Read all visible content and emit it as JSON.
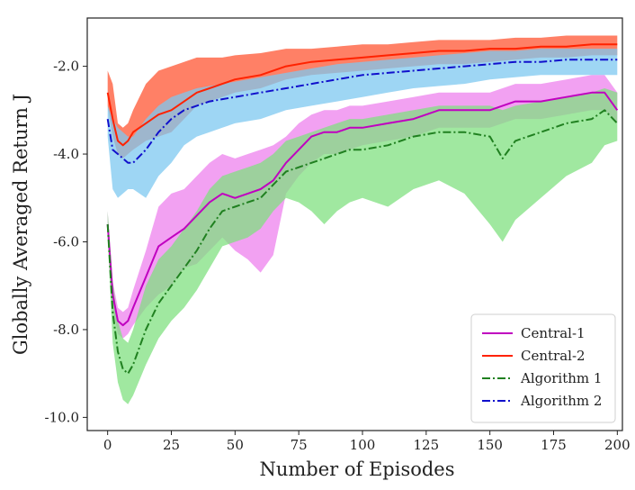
{
  "chart_data": {
    "type": "line",
    "title": "",
    "xlabel": "Number of Episodes",
    "ylabel": "Globally Averaged Return J",
    "xlim": [
      -8,
      202
    ],
    "ylim": [
      -10.3,
      -0.9
    ],
    "xticks": [
      0,
      25,
      50,
      75,
      100,
      125,
      150,
      175,
      200
    ],
    "xtick_labels": [
      "0",
      "25",
      "50",
      "75",
      "100",
      "125",
      "150",
      "175",
      "200"
    ],
    "yticks": [
      -2.0,
      -4.0,
      -6.0,
      -8.0,
      -10.0
    ],
    "ytick_labels": [
      "-2.0",
      "-4.0",
      "-6.0",
      "-8.0",
      "-10.0"
    ],
    "grid": false,
    "legend_position": "bottom-right",
    "series": [
      {
        "name": "Central-1",
        "color": "#c000c0",
        "band_color": "#ee82ee",
        "dash": "solid",
        "x": [
          0,
          2,
          4,
          6,
          8,
          10,
          15,
          20,
          25,
          30,
          35,
          40,
          45,
          50,
          55,
          60,
          65,
          70,
          75,
          80,
          85,
          90,
          95,
          100,
          110,
          120,
          130,
          140,
          150,
          160,
          170,
          180,
          190,
          195,
          200
        ],
        "y": [
          -5.6,
          -7.2,
          -7.8,
          -7.9,
          -7.8,
          -7.5,
          -6.8,
          -6.1,
          -5.9,
          -5.7,
          -5.4,
          -5.1,
          -4.9,
          -5.0,
          -4.9,
          -4.8,
          -4.6,
          -4.2,
          -3.9,
          -3.6,
          -3.5,
          -3.5,
          -3.4,
          -3.4,
          -3.3,
          -3.2,
          -3.0,
          -3.0,
          -3.0,
          -2.8,
          -2.8,
          -2.7,
          -2.6,
          -2.6,
          -3.0
        ],
        "lower": [
          -5.8,
          -7.5,
          -8.1,
          -8.2,
          -8.1,
          -7.9,
          -7.5,
          -7.2,
          -7.0,
          -6.6,
          -6.5,
          -6.2,
          -5.9,
          -6.2,
          -6.4,
          -6.7,
          -6.3,
          -4.9,
          -4.5,
          -4.2,
          -4.0,
          -4.0,
          -3.9,
          -3.8,
          -3.7,
          -3.6,
          -3.4,
          -3.4,
          -3.4,
          -3.2,
          -3.2,
          -3.1,
          -3.0,
          -3.0,
          -3.3
        ],
        "upper": [
          -5.3,
          -6.9,
          -7.5,
          -7.6,
          -7.5,
          -7.1,
          -6.2,
          -5.2,
          -4.9,
          -4.8,
          -4.5,
          -4.2,
          -4.0,
          -4.1,
          -4.0,
          -3.9,
          -3.8,
          -3.6,
          -3.3,
          -3.1,
          -3.0,
          -3.0,
          -2.9,
          -2.9,
          -2.8,
          -2.7,
          -2.6,
          -2.6,
          -2.6,
          -2.4,
          -2.4,
          -2.3,
          -2.2,
          -2.2,
          -2.6
        ]
      },
      {
        "name": "Central-2",
        "color": "#ff2200",
        "band_color": "#ff5533",
        "dash": "solid",
        "x": [
          0,
          2,
          4,
          6,
          8,
          10,
          15,
          20,
          25,
          30,
          35,
          40,
          45,
          50,
          60,
          70,
          80,
          90,
          100,
          110,
          120,
          130,
          140,
          150,
          160,
          170,
          180,
          190,
          200
        ],
        "y": [
          -2.6,
          -3.2,
          -3.7,
          -3.8,
          -3.7,
          -3.5,
          -3.3,
          -3.1,
          -3.0,
          -2.8,
          -2.6,
          -2.5,
          -2.4,
          -2.3,
          -2.2,
          -2.0,
          -1.9,
          -1.85,
          -1.8,
          -1.75,
          -1.7,
          -1.65,
          -1.65,
          -1.6,
          -1.6,
          -1.55,
          -1.55,
          -1.5,
          -1.5
        ],
        "lower": [
          -2.9,
          -3.6,
          -4.0,
          -4.1,
          -4.0,
          -3.9,
          -3.7,
          -3.6,
          -3.5,
          -3.2,
          -2.9,
          -2.8,
          -2.7,
          -2.6,
          -2.5,
          -2.3,
          -2.2,
          -2.15,
          -2.1,
          -2.05,
          -2.0,
          -1.95,
          -1.95,
          -1.9,
          -1.85,
          -1.8,
          -1.8,
          -1.75,
          -1.75
        ],
        "upper": [
          -2.1,
          -2.4,
          -3.3,
          -3.4,
          -3.3,
          -3.0,
          -2.4,
          -2.1,
          -2.0,
          -1.9,
          -1.8,
          -1.8,
          -1.8,
          -1.75,
          -1.7,
          -1.6,
          -1.6,
          -1.55,
          -1.5,
          -1.5,
          -1.45,
          -1.4,
          -1.4,
          -1.4,
          -1.35,
          -1.35,
          -1.3,
          -1.3,
          -1.3
        ]
      },
      {
        "name": "Algorithm 1",
        "color": "#208020",
        "band_color": "#80e080",
        "dash": "dashdot",
        "x": [
          0,
          2,
          4,
          6,
          8,
          10,
          15,
          20,
          25,
          30,
          35,
          40,
          45,
          50,
          55,
          60,
          65,
          70,
          75,
          80,
          85,
          90,
          95,
          100,
          110,
          120,
          130,
          140,
          150,
          155,
          160,
          170,
          180,
          190,
          195,
          200
        ],
        "y": [
          -5.6,
          -7.6,
          -8.5,
          -8.9,
          -9.0,
          -8.8,
          -8.0,
          -7.4,
          -7.0,
          -6.6,
          -6.2,
          -5.7,
          -5.3,
          -5.2,
          -5.1,
          -5.0,
          -4.7,
          -4.4,
          -4.3,
          -4.2,
          -4.1,
          -4.0,
          -3.9,
          -3.9,
          -3.8,
          -3.6,
          -3.5,
          -3.5,
          -3.6,
          -4.1,
          -3.7,
          -3.5,
          -3.3,
          -3.2,
          -3.0,
          -3.3
        ],
        "lower": [
          -5.9,
          -8.3,
          -9.2,
          -9.6,
          -9.7,
          -9.5,
          -8.8,
          -8.2,
          -7.8,
          -7.5,
          -7.1,
          -6.6,
          -6.1,
          -6.0,
          -5.9,
          -5.7,
          -5.3,
          -5.0,
          -5.1,
          -5.3,
          -5.6,
          -5.3,
          -5.1,
          -5.0,
          -5.2,
          -4.8,
          -4.6,
          -4.9,
          -5.6,
          -6.0,
          -5.5,
          -5.0,
          -4.5,
          -4.2,
          -3.8,
          -3.7
        ],
        "upper": [
          -5.3,
          -6.9,
          -7.8,
          -8.2,
          -8.3,
          -8.0,
          -7.0,
          -6.4,
          -6.1,
          -5.7,
          -5.3,
          -4.8,
          -4.5,
          -4.4,
          -4.3,
          -4.2,
          -4.0,
          -3.7,
          -3.6,
          -3.5,
          -3.4,
          -3.3,
          -3.2,
          -3.2,
          -3.1,
          -3.0,
          -2.9,
          -2.9,
          -2.9,
          -3.0,
          -2.9,
          -2.8,
          -2.7,
          -2.6,
          -2.5,
          -2.6
        ]
      },
      {
        "name": "Algorithm 2",
        "color": "#1010cc",
        "band_color": "#7ec8f0",
        "dash": "dashdot",
        "x": [
          0,
          2,
          4,
          6,
          8,
          10,
          15,
          20,
          25,
          30,
          35,
          40,
          45,
          50,
          60,
          70,
          80,
          90,
          100,
          110,
          120,
          130,
          140,
          150,
          160,
          170,
          180,
          190,
          200
        ],
        "y": [
          -3.2,
          -3.9,
          -4.0,
          -4.1,
          -4.2,
          -4.2,
          -3.9,
          -3.5,
          -3.2,
          -3.0,
          -2.9,
          -2.8,
          -2.75,
          -2.7,
          -2.6,
          -2.5,
          -2.4,
          -2.3,
          -2.2,
          -2.15,
          -2.1,
          -2.05,
          -2.0,
          -1.95,
          -1.9,
          -1.9,
          -1.85,
          -1.85,
          -1.85
        ],
        "lower": [
          -3.6,
          -4.8,
          -5.0,
          -4.9,
          -4.8,
          -4.8,
          -5.0,
          -4.5,
          -4.2,
          -3.8,
          -3.6,
          -3.5,
          -3.4,
          -3.3,
          -3.2,
          -3.0,
          -2.9,
          -2.8,
          -2.7,
          -2.6,
          -2.5,
          -2.45,
          -2.4,
          -2.3,
          -2.25,
          -2.2,
          -2.2,
          -2.2,
          -2.2
        ],
        "upper": [
          -2.9,
          -3.2,
          -3.4,
          -3.5,
          -3.6,
          -3.6,
          -3.2,
          -2.9,
          -2.7,
          -2.6,
          -2.5,
          -2.45,
          -2.4,
          -2.35,
          -2.25,
          -2.15,
          -2.05,
          -1.95,
          -1.9,
          -1.85,
          -1.8,
          -1.75,
          -1.7,
          -1.65,
          -1.65,
          -1.6,
          -1.6,
          -1.6,
          -1.6
        ]
      }
    ]
  }
}
